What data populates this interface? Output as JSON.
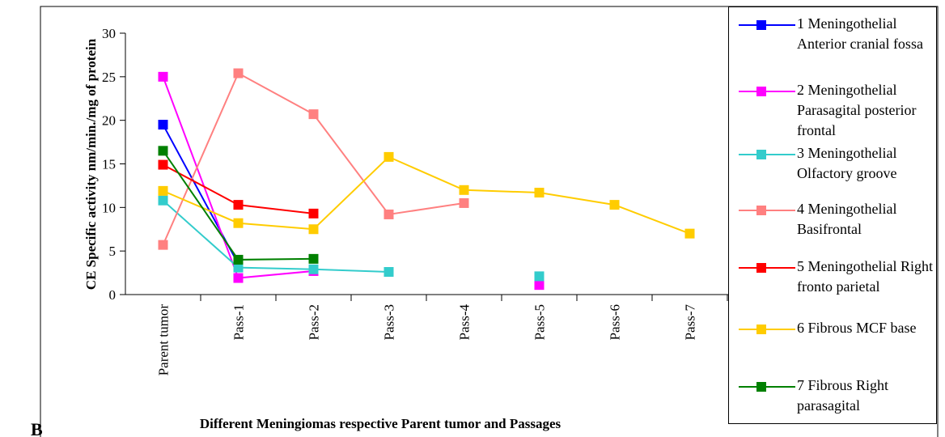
{
  "chart_data": {
    "type": "line",
    "panel_label": "B",
    "x_label": "Different Meningiomas respective Parent tumor and Passages",
    "y_label": "CE Specific activity nm/min./mg of protein",
    "categories": [
      "Parent tumor",
      "Pass-1",
      "Pass-2",
      "Pass-3",
      "Pass-4",
      "Pass-5",
      "Pass-6",
      "Pass-7"
    ],
    "ylim": [
      0,
      30
    ],
    "yticks": [
      0,
      5,
      10,
      15,
      20,
      25,
      30
    ],
    "series": [
      {
        "name": "1 Meningothelial Anterior cranial fossa",
        "color": "#0000ff",
        "values": [
          19.5,
          3.5,
          null,
          null,
          null,
          null,
          null,
          null
        ]
      },
      {
        "name": "2  Meningothelial Parasagital posterior frontal",
        "color": "#ff00ff",
        "values": [
          25,
          1.9,
          2.7,
          null,
          null,
          1.1,
          null,
          null
        ]
      },
      {
        "name": "3 Meningothelial Olfactory groove",
        "color": "#33cccc",
        "values": [
          10.8,
          3.1,
          2.9,
          2.6,
          null,
          2.1,
          null,
          null
        ]
      },
      {
        "name": "4 Meningothelial Basifrontal",
        "color": "#ff8080",
        "values": [
          5.7,
          25.4,
          20.7,
          9.2,
          10.5,
          null,
          null,
          null
        ]
      },
      {
        "name": "5 Meningothelial Right fronto parietal",
        "color": "#ff0000",
        "values": [
          14.9,
          10.3,
          9.3,
          null,
          null,
          null,
          null,
          null
        ]
      },
      {
        "name": "6 Fibrous MCF base",
        "color": "#ffcc00",
        "values": [
          11.9,
          8.2,
          7.5,
          15.8,
          12.0,
          11.7,
          10.3,
          7.0
        ]
      },
      {
        "name": "7 Fibrous Right parasagital",
        "color": "#008000",
        "values": [
          16.5,
          4.0,
          4.1,
          null,
          null,
          null,
          null,
          null
        ]
      }
    ]
  }
}
